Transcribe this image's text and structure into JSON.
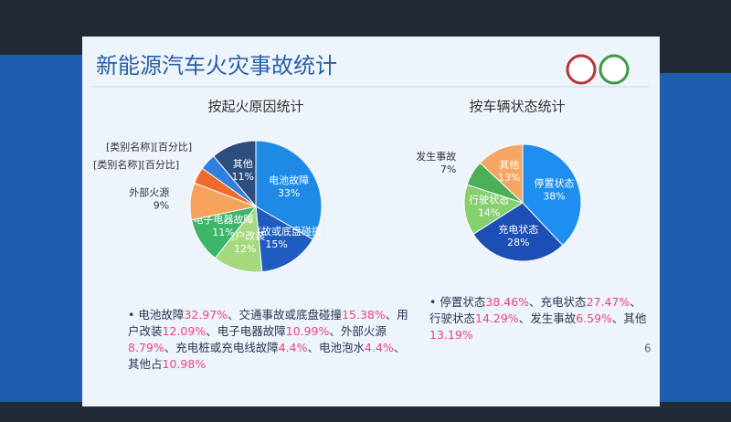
{
  "slide": {
    "title": "新能源汽车火灾事故统计",
    "page": "6",
    "notes": [
      [
        "电池故障",
        "32.97%",
        "、交通事故或底盘碰撞",
        "15.38%",
        "、用户改装",
        "12.09%",
        "、电子电器故障",
        "10.99%",
        "、外部火源",
        "8.79%",
        "、充电桩或充电线故障",
        "4.4%",
        "、电池泡水",
        "4.4%",
        "、其他占",
        "10.98%"
      ],
      [
        "停置状态",
        "38.46%",
        "、充电状态",
        "27.47%",
        "、行驶状态",
        "14.29%",
        "、发生事故",
        "6.59%",
        "、其他",
        "13.19%"
      ]
    ]
  },
  "chart_data": [
    {
      "type": "pie",
      "title": "按起火原因统计",
      "categories": [
        "电池故障",
        "交通事故或底盘碰撞",
        "用户改装",
        "电子电器故障",
        "外部火源",
        "[类别名称][百分比]",
        "[类别名称][百分比]",
        "其他"
      ],
      "values": [
        33,
        15,
        12,
        11,
        9,
        4,
        4,
        11
      ],
      "value_labels": [
        "33%",
        "15%",
        "12%",
        "11%",
        "9%",
        null,
        null,
        "11%"
      ],
      "colors": [
        "#1e8ae6",
        "#1f5cc0",
        "#a6d97e",
        "#3db56a",
        "#f5a25c",
        "#ef6b2b",
        "#2f7fe0",
        "#2d4d7e"
      ]
    },
    {
      "type": "pie",
      "title": "按车辆状态统计",
      "categories": [
        "停置状态",
        "充电状态",
        "行驶状态",
        "发生事故",
        "其他"
      ],
      "values": [
        38,
        28,
        14,
        7,
        13
      ],
      "value_labels": [
        "38%",
        "28%",
        "14%",
        "7%",
        "13%"
      ],
      "colors": [
        "#1e8fef",
        "#1c4fb5",
        "#86d070",
        "#4cae55",
        "#f5a663"
      ]
    }
  ]
}
